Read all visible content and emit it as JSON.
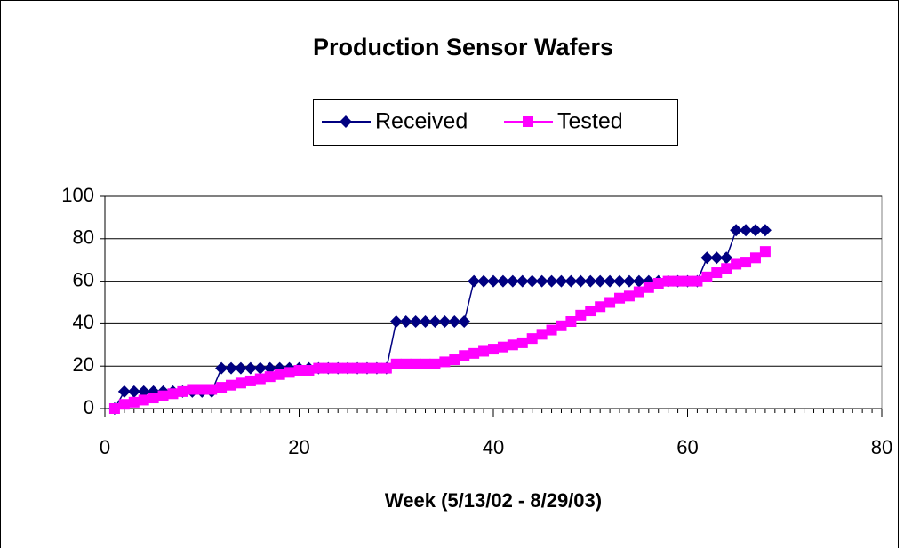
{
  "chart_data": {
    "type": "line",
    "title": "Production Sensor Wafers",
    "x_label": "Week (5/13/02 - 8/29/03)",
    "x": [
      1,
      2,
      3,
      4,
      5,
      6,
      7,
      8,
      9,
      10,
      11,
      12,
      13,
      14,
      15,
      16,
      17,
      18,
      19,
      20,
      21,
      22,
      23,
      24,
      25,
      26,
      27,
      28,
      29,
      30,
      31,
      32,
      33,
      34,
      35,
      36,
      37,
      38,
      39,
      40,
      41,
      42,
      43,
      44,
      45,
      46,
      47,
      48,
      49,
      50,
      51,
      52,
      53,
      54,
      55,
      56,
      57,
      58,
      59,
      60,
      61,
      62,
      63,
      64,
      65,
      66,
      67,
      68
    ],
    "series": [
      {
        "name": "Received",
        "color": "#000080",
        "marker": "diamond",
        "values": [
          0,
          8,
          8,
          8,
          8,
          8,
          8,
          8,
          8,
          8,
          8,
          19,
          19,
          19,
          19,
          19,
          19,
          19,
          19,
          19,
          19,
          19,
          19,
          19,
          19,
          19,
          19,
          19,
          19,
          41,
          41,
          41,
          41,
          41,
          41,
          41,
          41,
          60,
          60,
          60,
          60,
          60,
          60,
          60,
          60,
          60,
          60,
          60,
          60,
          60,
          60,
          60,
          60,
          60,
          60,
          60,
          60,
          60,
          60,
          60,
          60,
          71,
          71,
          71,
          84,
          84,
          84,
          84
        ]
      },
      {
        "name": "Tested",
        "color": "#ff00ff",
        "marker": "square",
        "values": [
          0,
          2,
          3,
          4,
          5,
          6,
          7,
          8,
          9,
          9,
          9,
          10,
          11,
          12,
          13,
          14,
          15,
          16,
          17,
          18,
          18,
          19,
          19,
          19,
          19,
          19,
          19,
          19,
          19,
          21,
          21,
          21,
          21,
          21,
          22,
          23,
          25,
          26,
          27,
          28,
          29,
          30,
          31,
          33,
          35,
          37,
          39,
          41,
          44,
          46,
          48,
          50,
          52,
          53,
          55,
          57,
          59,
          60,
          60,
          60,
          60,
          62,
          64,
          66,
          68,
          69,
          71,
          74
        ]
      }
    ],
    "xlim": [
      0,
      80
    ],
    "xticks": [
      0,
      20,
      40,
      60,
      80
    ],
    "ylim": [
      0,
      100
    ],
    "yticks": [
      0,
      20,
      40,
      60,
      80,
      100
    ],
    "grid": true,
    "legend": "top"
  }
}
